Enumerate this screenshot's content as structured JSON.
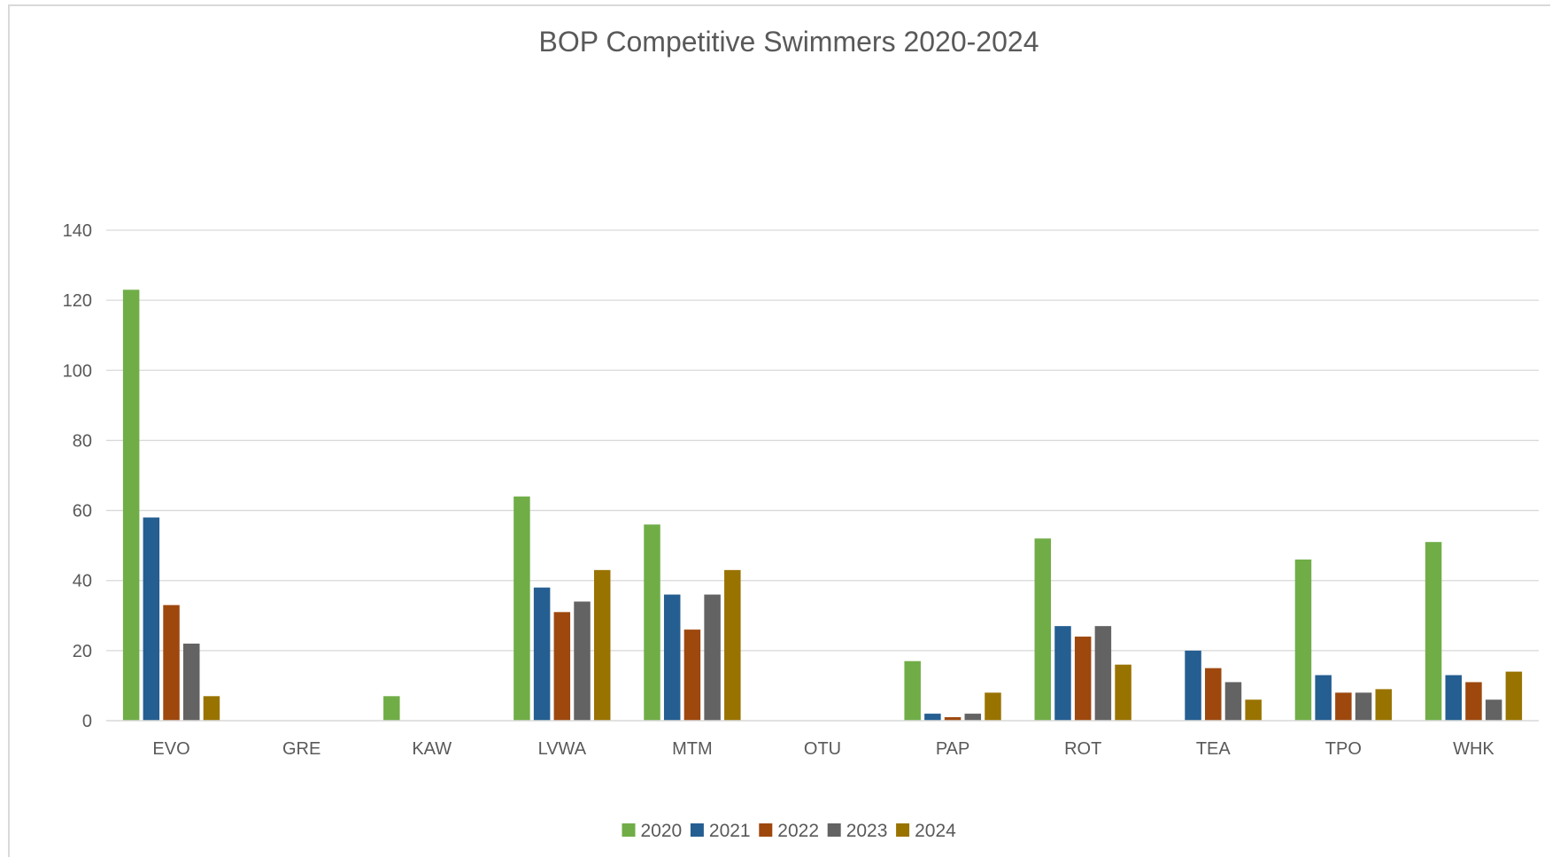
{
  "chart_data": {
    "type": "bar",
    "title": "BOP Competitive Swimmers 2020-2024",
    "xlabel": "",
    "ylabel": "",
    "ylim": [
      0,
      140
    ],
    "yticks": [
      0,
      20,
      40,
      60,
      80,
      100,
      120,
      140
    ],
    "grid": true,
    "legend_position": "bottom",
    "categories": [
      "EVO",
      "GRE",
      "KAW",
      "LVWA",
      "MTM",
      "OTU",
      "PAP",
      "ROT",
      "TEA",
      "TPO",
      "WHK"
    ],
    "series": [
      {
        "name": "2020",
        "color": "#70ad47",
        "values": [
          123,
          0,
          7,
          64,
          56,
          0,
          17,
          52,
          0,
          46,
          51
        ]
      },
      {
        "name": "2021",
        "color": "#255e91",
        "values": [
          58,
          0,
          0,
          38,
          36,
          0,
          2,
          27,
          20,
          13,
          13
        ]
      },
      {
        "name": "2022",
        "color": "#9e480e",
        "values": [
          33,
          0,
          0,
          31,
          26,
          0,
          1,
          24,
          15,
          8,
          11
        ]
      },
      {
        "name": "2023",
        "color": "#636363",
        "values": [
          22,
          0,
          0,
          34,
          36,
          0,
          2,
          27,
          11,
          8,
          6
        ]
      },
      {
        "name": "2024",
        "color": "#997300",
        "values": [
          7,
          0,
          0,
          43,
          43,
          0,
          8,
          16,
          6,
          9,
          14
        ]
      }
    ]
  }
}
